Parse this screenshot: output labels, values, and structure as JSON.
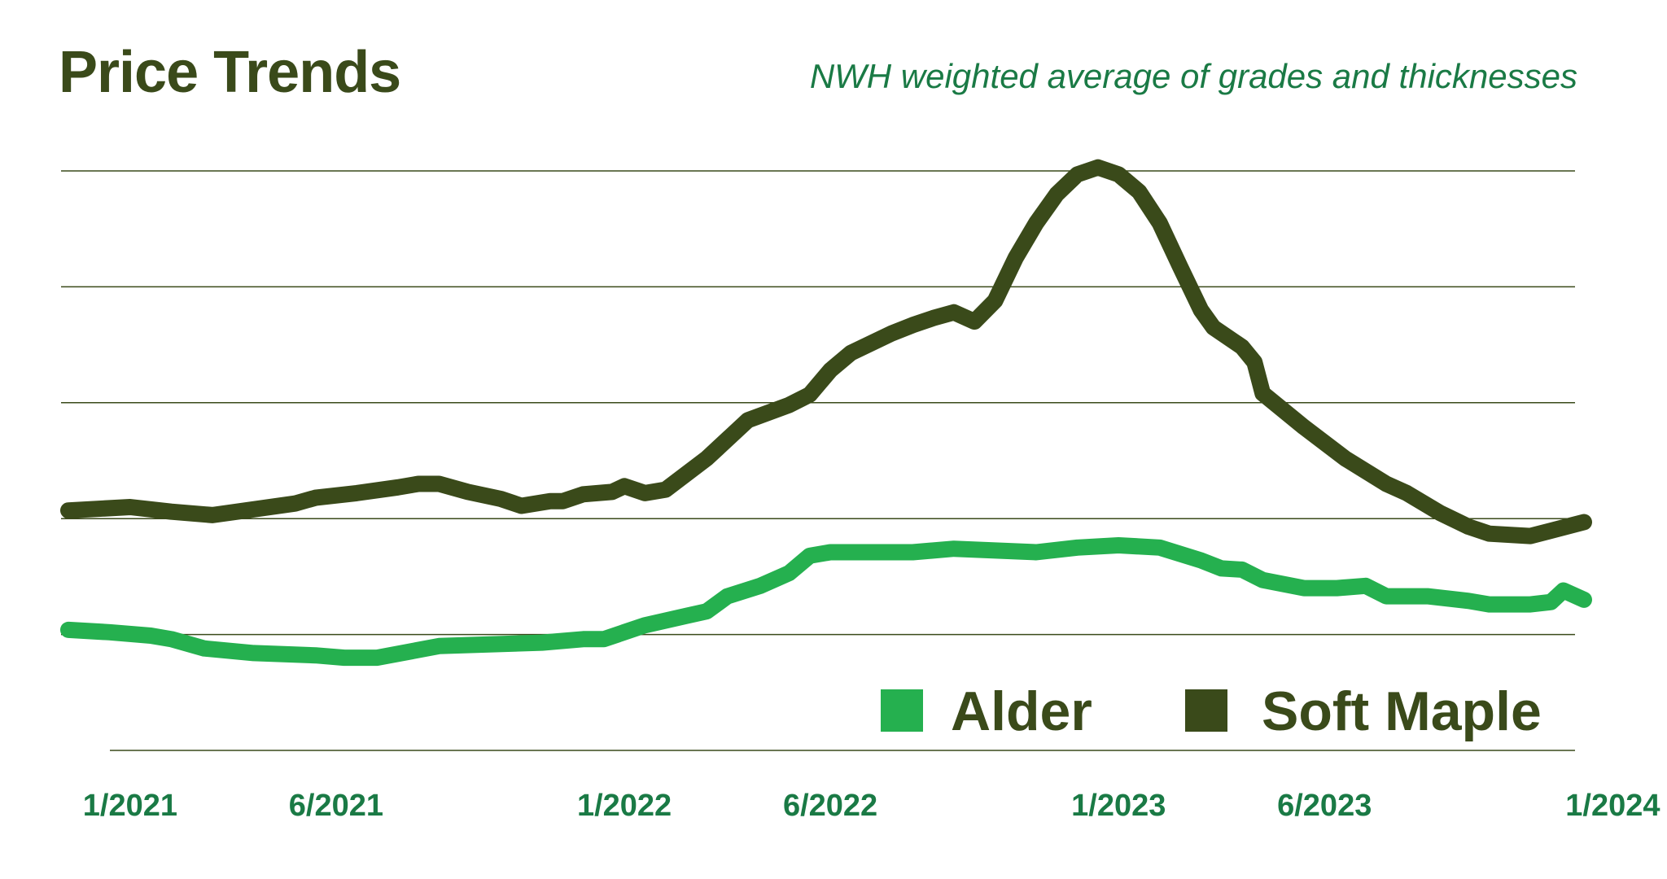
{
  "chart_data": {
    "type": "line",
    "title": "Price Trends",
    "subtitle": "NWH weighted average of grades and thicknesses",
    "xlabel": "",
    "ylabel": "",
    "x_ticks": [
      "1/2021",
      "6/2021",
      "1/2022",
      "6/2022",
      "1/2023",
      "6/2023",
      "1/2024"
    ],
    "x_tick_months": [
      0,
      5,
      12,
      17,
      24,
      29,
      36
    ],
    "xlim_months": [
      -1.5,
      35.3
    ],
    "ylim": [
      0,
      5
    ],
    "y_gridlines": [
      0,
      1,
      2,
      3,
      4,
      5
    ],
    "grid": true,
    "legend": "bottom-right",
    "colors": {
      "Alder": "#25b04f",
      "Soft Maple": "#3a4a1a"
    },
    "series": [
      {
        "name": "Alder",
        "points": [
          [
            -1.5,
            1.04
          ],
          [
            -0.5,
            1.02
          ],
          [
            0.5,
            0.99
          ],
          [
            1.0,
            0.96
          ],
          [
            1.8,
            0.88
          ],
          [
            3.0,
            0.84
          ],
          [
            4.5,
            0.82
          ],
          [
            5.2,
            0.8
          ],
          [
            6.0,
            0.8
          ],
          [
            7.5,
            0.9
          ],
          [
            10.0,
            0.93
          ],
          [
            11.0,
            0.96
          ],
          [
            11.5,
            0.96
          ],
          [
            12.5,
            1.08
          ],
          [
            13.5,
            1.16
          ],
          [
            14.0,
            1.2
          ],
          [
            14.5,
            1.33
          ],
          [
            15.3,
            1.42
          ],
          [
            16.0,
            1.53
          ],
          [
            16.5,
            1.68
          ],
          [
            17.0,
            1.71
          ],
          [
            19.0,
            1.71
          ],
          [
            20.0,
            1.74
          ],
          [
            22.0,
            1.71
          ],
          [
            23.0,
            1.75
          ],
          [
            24.0,
            1.77
          ],
          [
            25.0,
            1.75
          ],
          [
            26.0,
            1.64
          ],
          [
            26.5,
            1.57
          ],
          [
            27.0,
            1.56
          ],
          [
            27.5,
            1.47
          ],
          [
            28.5,
            1.4
          ],
          [
            29.3,
            1.4
          ],
          [
            30.0,
            1.42
          ],
          [
            30.5,
            1.33
          ],
          [
            31.5,
            1.33
          ],
          [
            32.5,
            1.29
          ],
          [
            33.0,
            1.26
          ],
          [
            34.0,
            1.26
          ],
          [
            34.5,
            1.28
          ],
          [
            34.8,
            1.38
          ],
          [
            35.3,
            1.3
          ]
        ]
      },
      {
        "name": "Soft Maple",
        "points": [
          [
            -1.5,
            2.07
          ],
          [
            0.0,
            2.1
          ],
          [
            1.0,
            2.06
          ],
          [
            2.0,
            2.03
          ],
          [
            3.0,
            2.08
          ],
          [
            4.0,
            2.13
          ],
          [
            4.5,
            2.18
          ],
          [
            5.5,
            2.22
          ],
          [
            6.5,
            2.27
          ],
          [
            7.0,
            2.3
          ],
          [
            7.5,
            2.3
          ],
          [
            8.2,
            2.23
          ],
          [
            9.0,
            2.17
          ],
          [
            9.5,
            2.11
          ],
          [
            10.2,
            2.15
          ],
          [
            10.5,
            2.15
          ],
          [
            11.0,
            2.21
          ],
          [
            11.7,
            2.23
          ],
          [
            12.0,
            2.28
          ],
          [
            12.5,
            2.22
          ],
          [
            13.0,
            2.25
          ],
          [
            14.0,
            2.52
          ],
          [
            15.0,
            2.85
          ],
          [
            16.0,
            2.98
          ],
          [
            16.5,
            3.07
          ],
          [
            17.0,
            3.28
          ],
          [
            17.5,
            3.43
          ],
          [
            18.5,
            3.6
          ],
          [
            19.0,
            3.67
          ],
          [
            19.5,
            3.73
          ],
          [
            20.0,
            3.78
          ],
          [
            20.5,
            3.7
          ],
          [
            21.0,
            3.88
          ],
          [
            21.5,
            4.25
          ],
          [
            22.0,
            4.55
          ],
          [
            22.5,
            4.8
          ],
          [
            23.0,
            4.97
          ],
          [
            23.5,
            5.03
          ],
          [
            24.0,
            4.97
          ],
          [
            24.5,
            4.82
          ],
          [
            25.0,
            4.55
          ],
          [
            25.5,
            4.17
          ],
          [
            26.0,
            3.8
          ],
          [
            26.3,
            3.65
          ],
          [
            27.0,
            3.48
          ],
          [
            27.3,
            3.35
          ],
          [
            27.5,
            3.08
          ],
          [
            28.5,
            2.79
          ],
          [
            29.5,
            2.52
          ],
          [
            30.5,
            2.3
          ],
          [
            31.0,
            2.22
          ],
          [
            31.8,
            2.05
          ],
          [
            32.5,
            1.93
          ],
          [
            33.0,
            1.87
          ],
          [
            34.0,
            1.85
          ],
          [
            35.3,
            1.97
          ]
        ]
      }
    ]
  }
}
